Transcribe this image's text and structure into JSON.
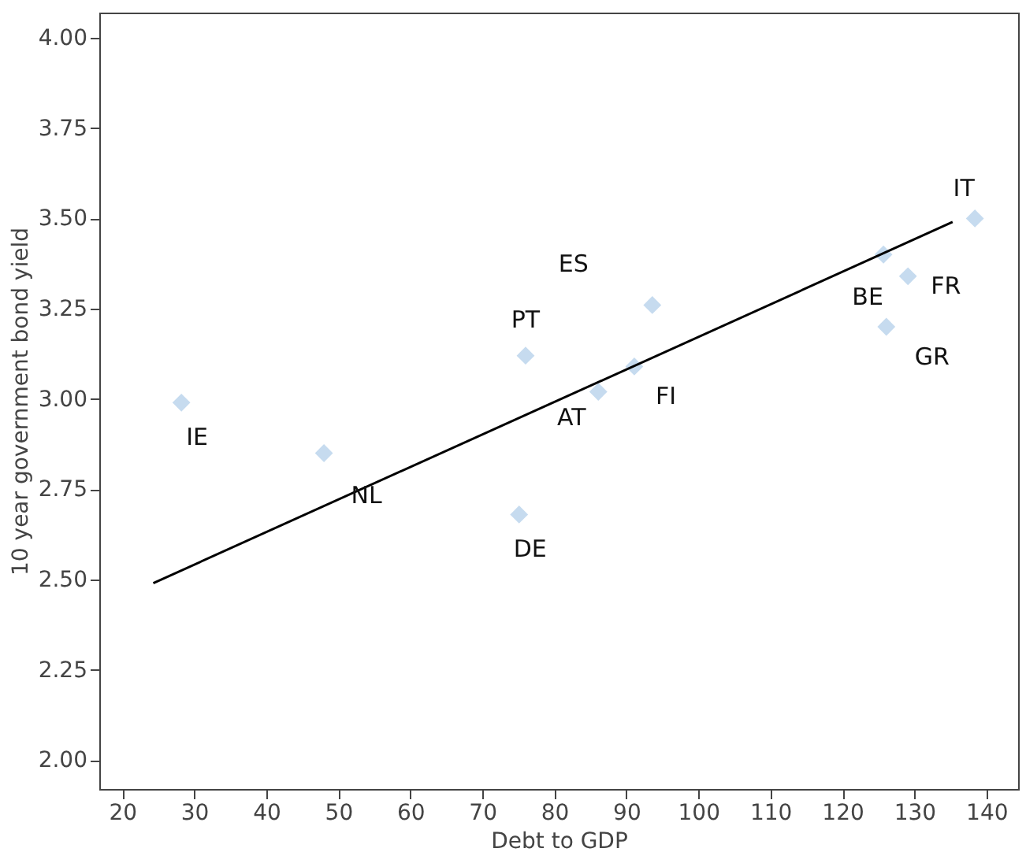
{
  "chart_data": {
    "type": "scatter",
    "xlabel": "Debt to GDP",
    "ylabel": "10 year government bond yield",
    "xlim": [
      16.8,
      144.4
    ],
    "ylim": [
      1.92,
      4.07
    ],
    "xticks": [
      20,
      30,
      40,
      50,
      60,
      70,
      80,
      90,
      100,
      110,
      120,
      130,
      140
    ],
    "yticks": [
      {
        "value": 2.0,
        "label": "2.00"
      },
      {
        "value": 2.25,
        "label": "2.25"
      },
      {
        "value": 2.5,
        "label": "2.50"
      },
      {
        "value": 2.75,
        "label": "2.75"
      },
      {
        "value": 3.0,
        "label": "3.00"
      },
      {
        "value": 3.25,
        "label": "3.25"
      },
      {
        "value": 3.5,
        "label": "3.50"
      },
      {
        "value": 3.75,
        "label": "3.75"
      },
      {
        "value": 4.0,
        "label": "4.00"
      }
    ],
    "grid": false,
    "legend": false,
    "marker": "diamond",
    "series": [
      {
        "color": "#c6dbef",
        "x": [
          28.2,
          48.0,
          75.1,
          76.0,
          86.1,
          91.1,
          93.6,
          125.7,
          129.1,
          126.1,
          138.4
        ],
        "values": [
          2.99,
          2.85,
          2.68,
          3.12,
          3.02,
          3.09,
          3.26,
          3.4,
          3.34,
          3.2,
          3.5
        ]
      },
      {
        "type": "line",
        "color": "#000000",
        "x": [
          24.3,
          135.3
        ],
        "values": [
          2.49,
          3.49
        ],
        "marker": "none",
        "line_style": "solid"
      }
    ],
    "annotations": [
      {
        "text": "IE",
        "x": 28.2,
        "y": 2.99
      },
      {
        "text": "NL",
        "x": 48.0,
        "y": 2.85
      },
      {
        "text": "DE",
        "x": 75.1,
        "y": 2.68
      },
      {
        "text": "PT",
        "x": 76.0,
        "y": 3.12
      },
      {
        "text": "AT",
        "x": 86.1,
        "y": 3.02
      },
      {
        "text": "FI",
        "x": 91.1,
        "y": 3.09
      },
      {
        "text": "ES",
        "x": 93.6,
        "y": 3.26
      },
      {
        "text": "BE",
        "x": 125.7,
        "y": 3.4
      },
      {
        "text": "FR",
        "x": 129.1,
        "y": 3.34
      },
      {
        "text": "GR",
        "x": 126.1,
        "y": 3.2
      },
      {
        "text": "IT",
        "x": 138.4,
        "y": 3.5
      }
    ]
  }
}
